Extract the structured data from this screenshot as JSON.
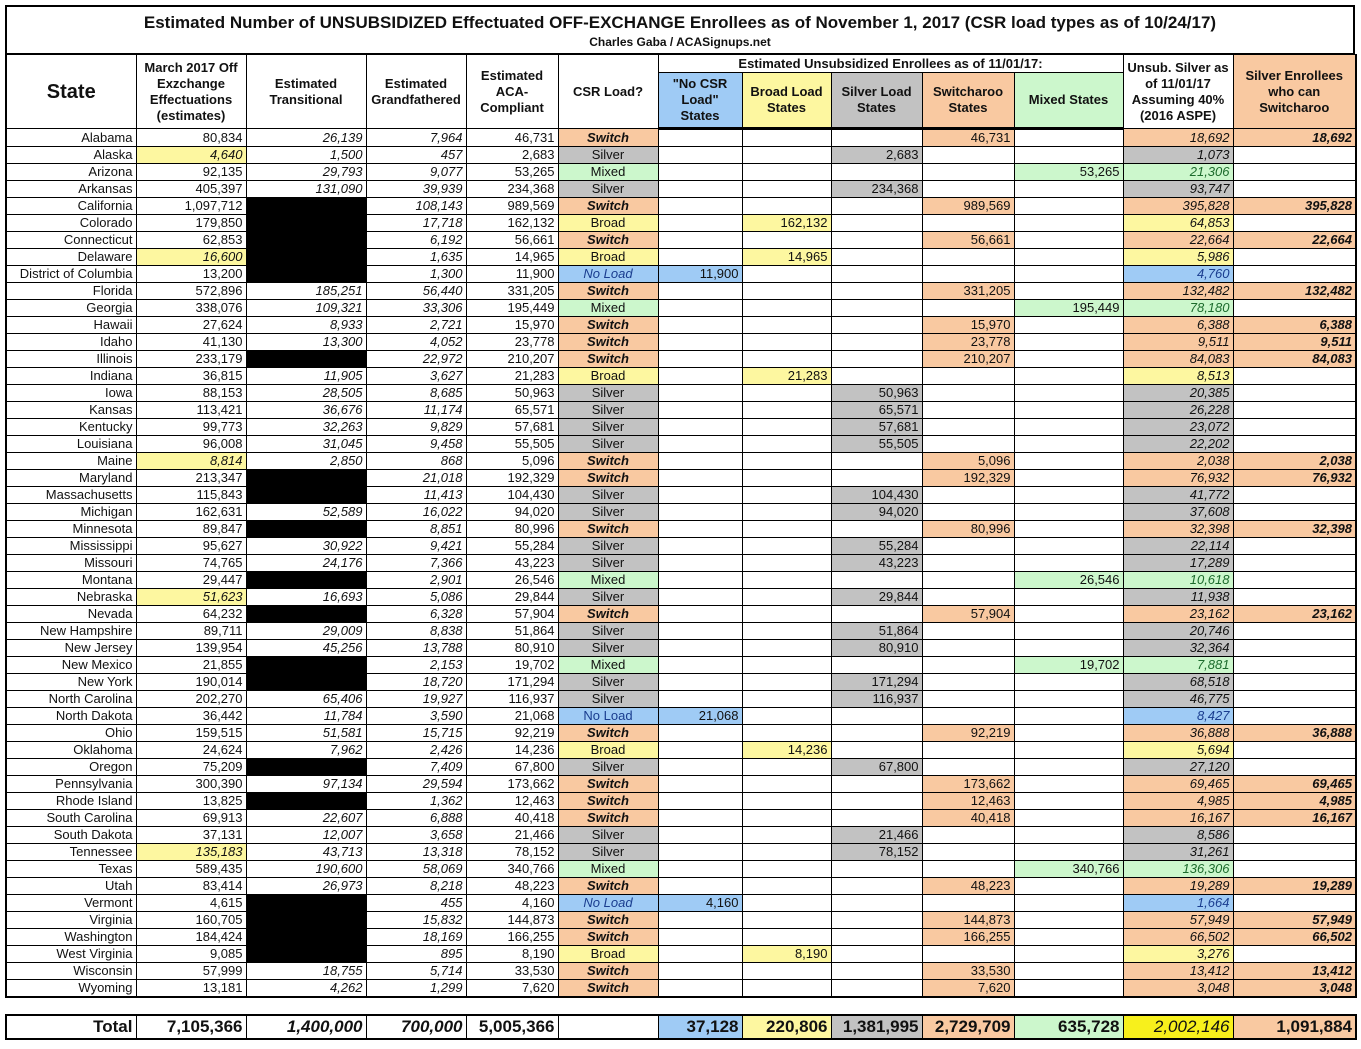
{
  "title": "Estimated Number of UNSUBSIDIZED Effectuated OFF-EXCHANGE Enrollees as of November 1, 2017 (CSR load types as of 10/24/17)",
  "subtitle": "Charles Gaba / ACASignups.net",
  "headers": {
    "state": "State",
    "march": "March 2017 Off Exzchange Effectuations (estimates)",
    "transitional": "Estimated Transitional",
    "grandfathered": "Estimated Grandfathered",
    "aca": "Estimated ACA-Compliant",
    "csr": "CSR Load?",
    "group": "Estimated Unsubsidized Enrollees as of 11/01/17:",
    "noload": "\"No CSR Load\" States",
    "broad": "Broad Load States",
    "silver": "Silver Load States",
    "switcharoo": "Switcharoo States",
    "mixed": "Mixed States",
    "unsub": "Unsub. Silver as of 11/01/17 Assuming 40% (2016 ASPE)",
    "enrollees": "Silver Enrollees who can Switcharoo"
  },
  "colors": {
    "switch": "#f9c9a1",
    "silver": "#c2c2c2",
    "broad": "#fdf7a0",
    "noload": "#9fcbf5",
    "mixed": "#ccf7cc",
    "unsub_total": "#f7f01c",
    "redacted": "#000000"
  },
  "load_labels": {
    "Switch": "Switch",
    "Silver": "Silver",
    "Broad": "Broad",
    "No Load": "No Load",
    "Mixed": "Mixed"
  },
  "highlighted_march_states": [
    "Alaska",
    "Delaware",
    "Maine",
    "Nebraska",
    "Tennessee"
  ],
  "rows": [
    [
      "Alabama",
      "80,834",
      "26,139",
      "7,964",
      "46,731",
      "Switch",
      "18,692",
      "18,692"
    ],
    [
      "Alaska",
      "4,640",
      "1,500",
      "457",
      "2,683",
      "Silver",
      "1,073",
      ""
    ],
    [
      "Arizona",
      "92,135",
      "29,793",
      "9,077",
      "53,265",
      "Mixed",
      "21,306",
      ""
    ],
    [
      "Arkansas",
      "405,397",
      "131,090",
      "39,939",
      "234,368",
      "Silver",
      "93,747",
      ""
    ],
    [
      "California",
      "1,097,712",
      null,
      "108,143",
      "989,569",
      "Switch",
      "395,828",
      "395,828"
    ],
    [
      "Colorado",
      "179,850",
      null,
      "17,718",
      "162,132",
      "Broad",
      "64,853",
      ""
    ],
    [
      "Connecticut",
      "62,853",
      null,
      "6,192",
      "56,661",
      "Switch",
      "22,664",
      "22,664"
    ],
    [
      "Delaware",
      "16,600",
      null,
      "1,635",
      "14,965",
      "Broad",
      "5,986",
      ""
    ],
    [
      "District of Columbia",
      "13,200",
      null,
      "1,300",
      "11,900",
      "No Load",
      "4,760",
      ""
    ],
    [
      "Florida",
      "572,896",
      "185,251",
      "56,440",
      "331,205",
      "Switch",
      "132,482",
      "132,482"
    ],
    [
      "Georgia",
      "338,076",
      "109,321",
      "33,306",
      "195,449",
      "Mixed",
      "78,180",
      ""
    ],
    [
      "Hawaii",
      "27,624",
      "8,933",
      "2,721",
      "15,970",
      "Switch",
      "6,388",
      "6,388"
    ],
    [
      "Idaho",
      "41,130",
      "13,300",
      "4,052",
      "23,778",
      "Switch",
      "9,511",
      "9,511"
    ],
    [
      "Illinois",
      "233,179",
      null,
      "22,972",
      "210,207",
      "Switch",
      "84,083",
      "84,083"
    ],
    [
      "Indiana",
      "36,815",
      "11,905",
      "3,627",
      "21,283",
      "Broad",
      "8,513",
      ""
    ],
    [
      "Iowa",
      "88,153",
      "28,505",
      "8,685",
      "50,963",
      "Silver",
      "20,385",
      ""
    ],
    [
      "Kansas",
      "113,421",
      "36,676",
      "11,174",
      "65,571",
      "Silver",
      "26,228",
      ""
    ],
    [
      "Kentucky",
      "99,773",
      "32,263",
      "9,829",
      "57,681",
      "Silver",
      "23,072",
      ""
    ],
    [
      "Louisiana",
      "96,008",
      "31,045",
      "9,458",
      "55,505",
      "Silver",
      "22,202",
      ""
    ],
    [
      "Maine",
      "8,814",
      "2,850",
      "868",
      "5,096",
      "Switch",
      "2,038",
      "2,038"
    ],
    [
      "Maryland",
      "213,347",
      null,
      "21,018",
      "192,329",
      "Switch",
      "76,932",
      "76,932"
    ],
    [
      "Massachusetts",
      "115,843",
      null,
      "11,413",
      "104,430",
      "Silver",
      "41,772",
      ""
    ],
    [
      "Michigan",
      "162,631",
      "52,589",
      "16,022",
      "94,020",
      "Silver",
      "37,608",
      ""
    ],
    [
      "Minnesota",
      "89,847",
      null,
      "8,851",
      "80,996",
      "Switch",
      "32,398",
      "32,398"
    ],
    [
      "Mississippi",
      "95,627",
      "30,922",
      "9,421",
      "55,284",
      "Silver",
      "22,114",
      ""
    ],
    [
      "Missouri",
      "74,765",
      "24,176",
      "7,366",
      "43,223",
      "Silver",
      "17,289",
      ""
    ],
    [
      "Montana",
      "29,447",
      null,
      "2,901",
      "26,546",
      "Mixed",
      "10,618",
      ""
    ],
    [
      "Nebraska",
      "51,623",
      "16,693",
      "5,086",
      "29,844",
      "Silver",
      "11,938",
      ""
    ],
    [
      "Nevada",
      "64,232",
      null,
      "6,328",
      "57,904",
      "Switch",
      "23,162",
      "23,162"
    ],
    [
      "New Hampshire",
      "89,711",
      "29,009",
      "8,838",
      "51,864",
      "Silver",
      "20,746",
      ""
    ],
    [
      "New Jersey",
      "139,954",
      "45,256",
      "13,788",
      "80,910",
      "Silver",
      "32,364",
      ""
    ],
    [
      "New Mexico",
      "21,855",
      null,
      "2,153",
      "19,702",
      "Mixed",
      "7,881",
      ""
    ],
    [
      "New York",
      "190,014",
      null,
      "18,720",
      "171,294",
      "Silver",
      "68,518",
      ""
    ],
    [
      "North Carolina",
      "202,270",
      "65,406",
      "19,927",
      "116,937",
      "Silver",
      "46,775",
      ""
    ],
    [
      "North Dakota",
      "36,442",
      "11,784",
      "3,590",
      "21,068",
      "No Load",
      "8,427",
      ""
    ],
    [
      "Ohio",
      "159,515",
      "51,581",
      "15,715",
      "92,219",
      "Switch",
      "36,888",
      "36,888"
    ],
    [
      "Oklahoma",
      "24,624",
      "7,962",
      "2,426",
      "14,236",
      "Broad",
      "5,694",
      ""
    ],
    [
      "Oregon",
      "75,209",
      null,
      "7,409",
      "67,800",
      "Silver",
      "27,120",
      ""
    ],
    [
      "Pennsylvania",
      "300,390",
      "97,134",
      "29,594",
      "173,662",
      "Switch",
      "69,465",
      "69,465"
    ],
    [
      "Rhode Island",
      "13,825",
      null,
      "1,362",
      "12,463",
      "Switch",
      "4,985",
      "4,985"
    ],
    [
      "South Carolina",
      "69,913",
      "22,607",
      "6,888",
      "40,418",
      "Switch",
      "16,167",
      "16,167"
    ],
    [
      "South Dakota",
      "37,131",
      "12,007",
      "3,658",
      "21,466",
      "Silver",
      "8,586",
      ""
    ],
    [
      "Tennessee",
      "135,183",
      "43,713",
      "13,318",
      "78,152",
      "Silver",
      "31,261",
      ""
    ],
    [
      "Texas",
      "589,435",
      "190,600",
      "58,069",
      "340,766",
      "Mixed",
      "136,306",
      ""
    ],
    [
      "Utah",
      "83,414",
      "26,973",
      "8,218",
      "48,223",
      "Switch",
      "19,289",
      "19,289"
    ],
    [
      "Vermont",
      "4,615",
      null,
      "455",
      "4,160",
      "No Load",
      "1,664",
      ""
    ],
    [
      "Virginia",
      "160,705",
      null,
      "15,832",
      "144,873",
      "Switch",
      "57,949",
      "57,949"
    ],
    [
      "Washington",
      "184,424",
      null,
      "18,169",
      "166,255",
      "Switch",
      "66,502",
      "66,502"
    ],
    [
      "West Virginia",
      "9,085",
      null,
      "895",
      "8,190",
      "Broad",
      "3,276",
      ""
    ],
    [
      "Wisconsin",
      "57,999",
      "18,755",
      "5,714",
      "33,530",
      "Switch",
      "13,412",
      "13,412"
    ],
    [
      "Wyoming",
      "13,181",
      "4,262",
      "1,299",
      "7,620",
      "Switch",
      "3,048",
      "3,048"
    ]
  ],
  "totals": {
    "label": "Total",
    "march": "7,105,366",
    "transitional": "1,400,000",
    "grandfathered": "700,000",
    "aca": "5,005,366",
    "noload": "37,128",
    "broad": "220,806",
    "silver": "1,381,995",
    "switcharoo": "2,729,709",
    "mixed": "635,728",
    "unsub": "2,002,146",
    "enrollees": "1,091,884"
  }
}
